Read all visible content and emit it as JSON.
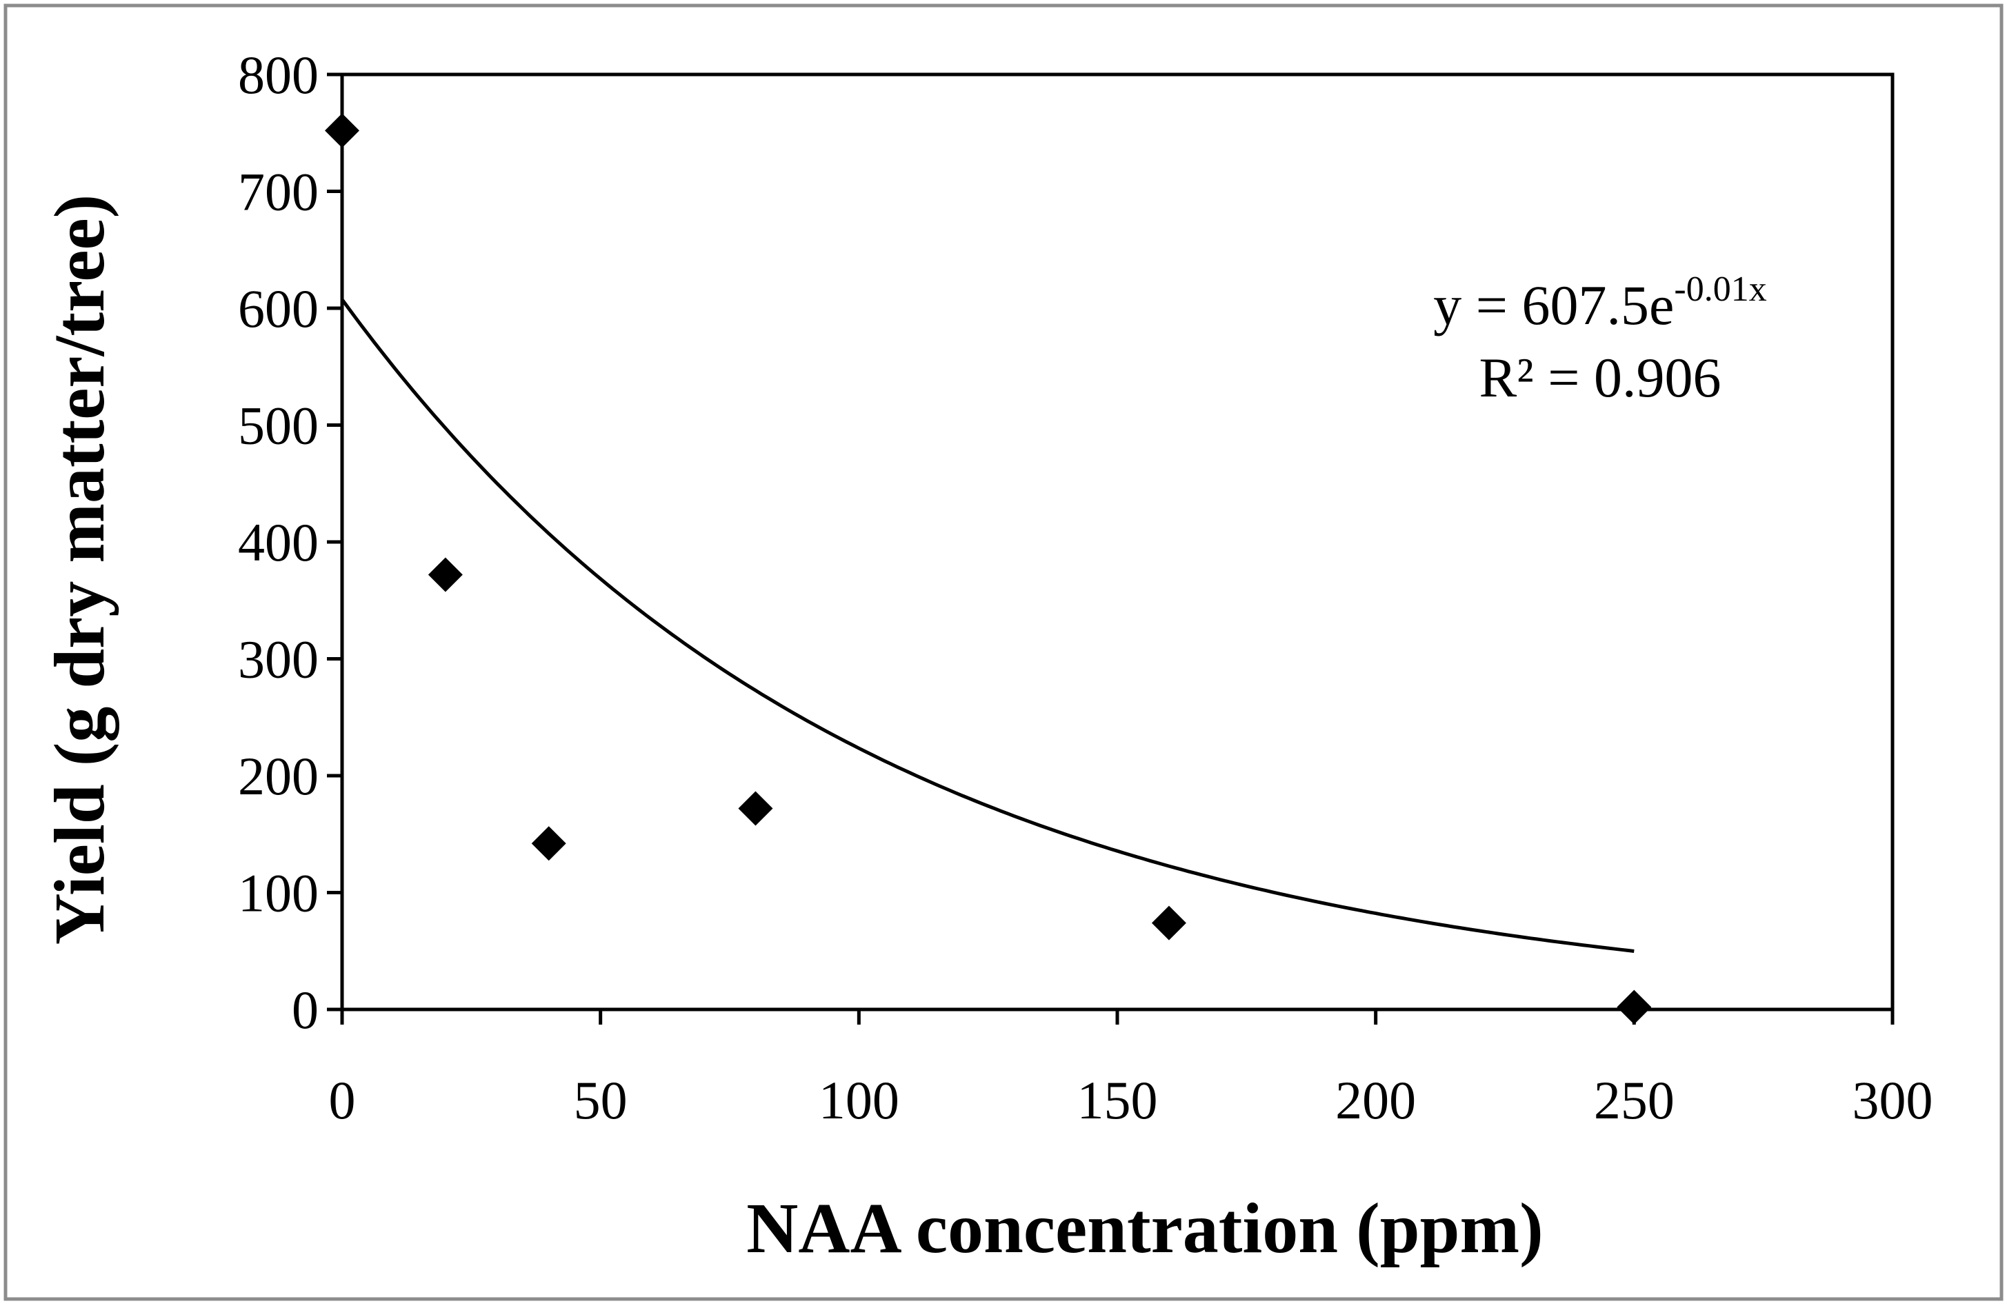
{
  "chart_data": {
    "type": "scatter",
    "title": "",
    "xlabel": "NAA concentration (ppm)",
    "ylabel": "Yield (g dry matter/tree)",
    "xlim": [
      0,
      300
    ],
    "ylim": [
      0,
      800
    ],
    "xticks": [
      0,
      50,
      100,
      150,
      200,
      250,
      300
    ],
    "yticks": [
      0,
      100,
      200,
      300,
      400,
      500,
      600,
      700,
      800
    ],
    "grid": false,
    "series": [
      {
        "name": "Yield",
        "marker": "diamond",
        "color": "#000000",
        "x": [
          0,
          20,
          40,
          80,
          160,
          250
        ],
        "y": [
          752,
          372,
          142,
          172,
          74,
          2
        ]
      }
    ],
    "trendline": {
      "type": "exponential",
      "a": 607.5,
      "b": -0.01,
      "x_range": [
        0,
        250
      ],
      "color": "#000000"
    },
    "annotations": {
      "equation_prefix": "y = 607.5e",
      "equation_exponent": "-0.01x",
      "r_squared": "R² = 0.906"
    }
  }
}
